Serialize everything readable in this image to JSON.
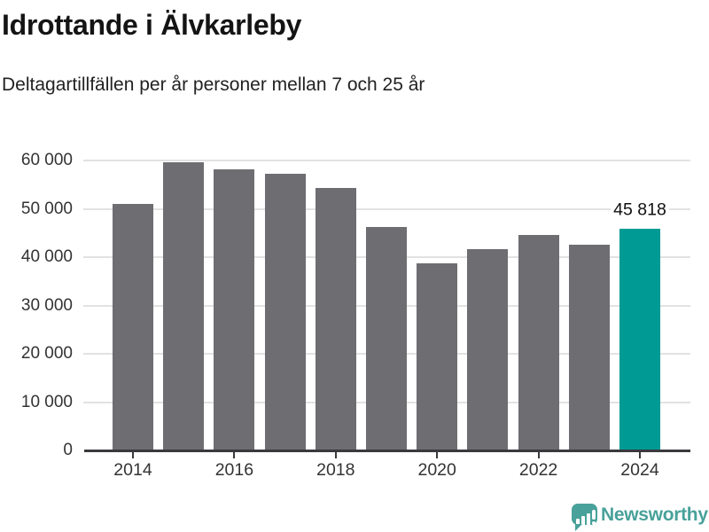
{
  "header": {
    "title": "Idrottande i Älvkarleby",
    "subtitle": "Deltagartillfällen per år personer mellan 7 och 25 år"
  },
  "chart_data": {
    "type": "bar",
    "title": "Idrottande i Älvkarleby",
    "subtitle": "Deltagartillfällen per år personer mellan 7 och 25 år",
    "categories": [
      "2014",
      "2015",
      "2016",
      "2017",
      "2018",
      "2019",
      "2020",
      "2021",
      "2022",
      "2023",
      "2024"
    ],
    "values": [
      51000,
      59700,
      58100,
      57300,
      54400,
      46200,
      38700,
      41700,
      44500,
      42600,
      45818
    ],
    "highlight": {
      "index": 10,
      "label": "45 818",
      "value": 45818
    },
    "xlabel": "",
    "ylabel": "",
    "ylim": [
      0,
      60000
    ],
    "ytick_interval": 10000,
    "ytick_labels": [
      "0",
      "10 000",
      "20 000",
      "30 000",
      "40 000",
      "50 000",
      "60 000"
    ],
    "xtick_labels": [
      "2014",
      "2016",
      "2018",
      "2020",
      "2022",
      "2024"
    ],
    "grid": true,
    "legend": "none",
    "bar_color": "#6d6d72",
    "highlight_color": "#009a94",
    "gridline_color": "#e2e2e2",
    "axis_color": "#3a3a3e"
  },
  "footer": {
    "brand": "Newsworthy",
    "logo_icon": "bar-chart-speech-bubble",
    "brand_color": "#48a19a"
  }
}
